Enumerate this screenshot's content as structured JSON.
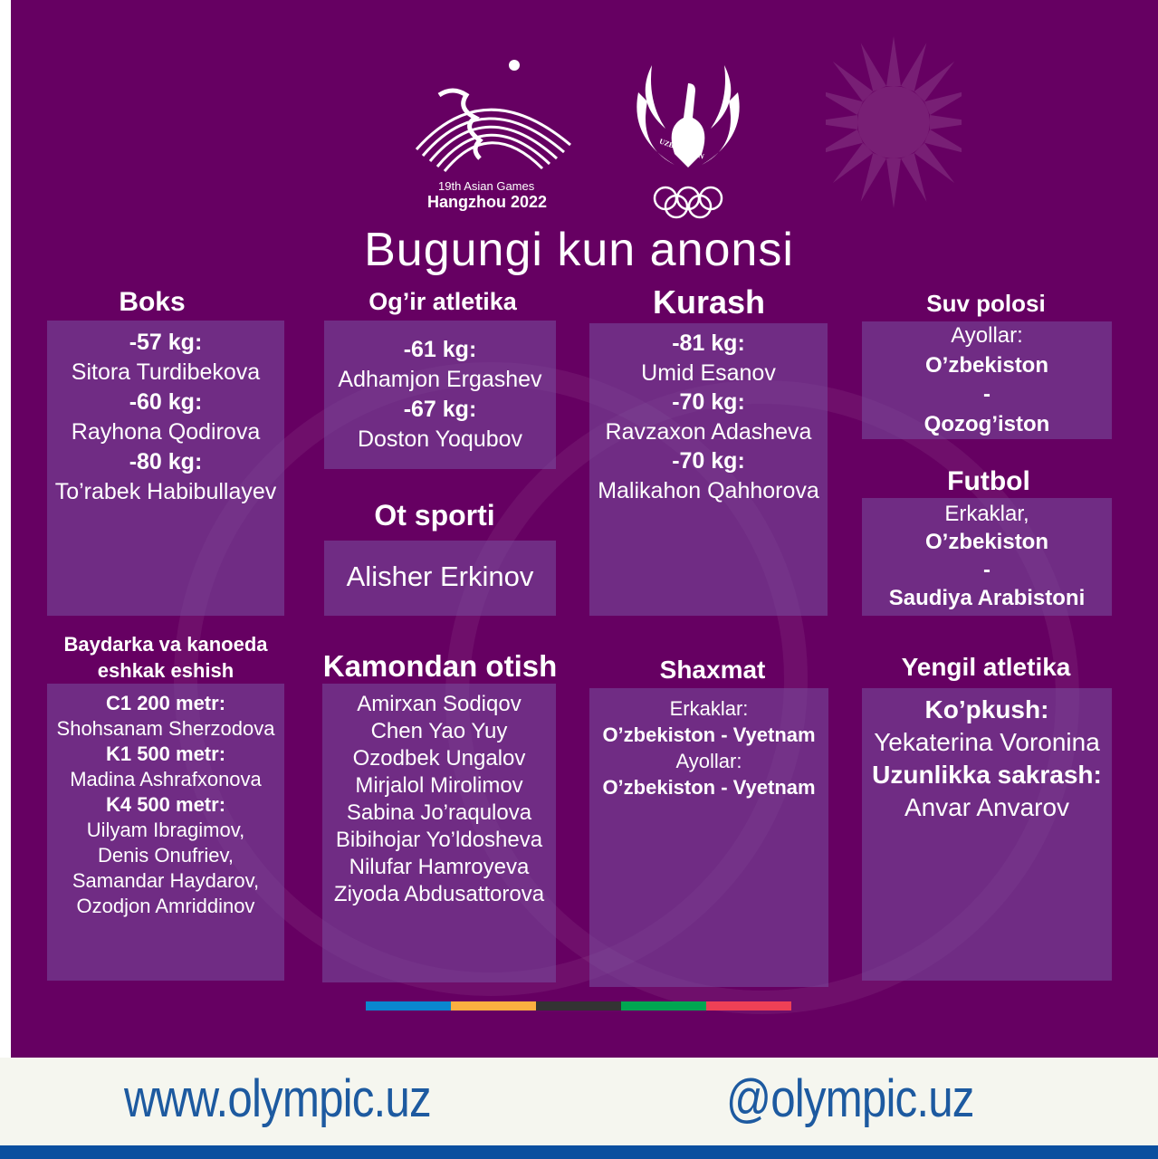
{
  "header": {
    "games_logo": {
      "line1": "19th Asian Games",
      "line2": "Hangzhou 2022"
    },
    "noc_logo": {
      "text": "UZBEKISTAN"
    },
    "title": "Bugungi kun anonsi"
  },
  "sections": [
    {
      "id": "boks",
      "title": "Boks",
      "lines": [
        {
          "t": "-57 kg:",
          "b": true
        },
        {
          "t": "Sitora Turdibekova"
        },
        {
          "t": "-60 kg:",
          "b": true
        },
        {
          "t": "Rayhona Qodirova"
        },
        {
          "t": "-80 kg:",
          "b": true
        },
        {
          "t": "To’rabek Habibullayev"
        }
      ]
    },
    {
      "id": "ogir-atletika",
      "title": "Og’ir atletika",
      "lines": [
        {
          "t": "-61 kg:",
          "b": true
        },
        {
          "t": "Adhamjon Ergashev"
        },
        {
          "t": "-67 kg:",
          "b": true
        },
        {
          "t": "Doston Yoqubov"
        }
      ]
    },
    {
      "id": "ot-sporti",
      "title": "Ot sporti",
      "lines": [
        {
          "t": "Alisher Erkinov"
        }
      ]
    },
    {
      "id": "kurash",
      "title": "Kurash",
      "lines": [
        {
          "t": "-81 kg:",
          "b": true
        },
        {
          "t": "Umid Esanov"
        },
        {
          "t": "-70 kg:",
          "b": true
        },
        {
          "t": "Ravzaxon Adasheva"
        },
        {
          "t": "-70 kg:",
          "b": true
        },
        {
          "t": "Malikahon Qahhorova"
        }
      ]
    },
    {
      "id": "suv-polosi",
      "title": "Suv polosi",
      "lines": [
        {
          "t": "Ayollar:"
        },
        {
          "t": "O’zbekiston",
          "b": true
        },
        {
          "t": "-",
          "b": true
        },
        {
          "t": "Qozog’iston",
          "b": true
        }
      ]
    },
    {
      "id": "futbol",
      "title": "Futbol",
      "lines": [
        {
          "t": "Erkaklar,"
        },
        {
          "t": "O’zbekiston",
          "b": true
        },
        {
          "t": "-",
          "b": true
        },
        {
          "t": "Saudiya Arabistoni",
          "b": true
        }
      ]
    },
    {
      "id": "baydarka",
      "title": "Baydarka va kanoeda\neshkak eshish",
      "lines": [
        {
          "t": "C1 200 metr:",
          "b": true
        },
        {
          "t": "Shohsanam Sherzodova"
        },
        {
          "t": "K1 500 metr:",
          "b": true
        },
        {
          "t": "Madina Ashrafxonova"
        },
        {
          "t": "K4 500 metr:",
          "b": true
        },
        {
          "t": "Uilyam Ibragimov,"
        },
        {
          "t": "Denis Onufriev,"
        },
        {
          "t": "Samandar Haydarov,"
        },
        {
          "t": "Ozodjon Amriddinov"
        }
      ]
    },
    {
      "id": "kamondan-otish",
      "title": "Kamondan otish",
      "lines": [
        {
          "t": "Amirxan Sodiqov"
        },
        {
          "t": "Chen Yao Yuy"
        },
        {
          "t": "Ozodbek Ungalov"
        },
        {
          "t": "Mirjalol Mirolimov"
        },
        {
          "t": "Sabina Jo’raqulova"
        },
        {
          "t": "Bibihojar Yo’ldosheva"
        },
        {
          "t": "Nilufar Hamroyeva"
        },
        {
          "t": "Ziyoda Abdusattorova"
        }
      ]
    },
    {
      "id": "shaxmat",
      "title": "Shaxmat",
      "lines": [
        {
          "t": "Erkaklar:"
        },
        {
          "t": "O’zbekiston - Vyetnam",
          "b": true
        },
        {
          "t": "Ayollar:"
        },
        {
          "t": "O’zbekiston - Vyetnam",
          "b": true
        }
      ]
    },
    {
      "id": "yengil-atletika",
      "title": "Yengil atletika",
      "lines": [
        {
          "t": "Ko’pkush:",
          "b": true
        },
        {
          "t": "Yekaterina Voronina"
        },
        {
          "t": "Uzunlikka sakrash:",
          "b": true
        },
        {
          "t": "Anvar Anvarov"
        }
      ]
    }
  ],
  "color_strip": [
    "#0a87cf",
    "#fbb040",
    "#333333",
    "#00a651",
    "#ee4056"
  ],
  "footer": {
    "website": "www.olympic.uz",
    "social": "@olympic.uz"
  },
  "colors": {
    "background": "#660062",
    "footer": "#f5f6ef",
    "accent_bar": "#0a4f9f",
    "link": "#1d5aa0"
  }
}
